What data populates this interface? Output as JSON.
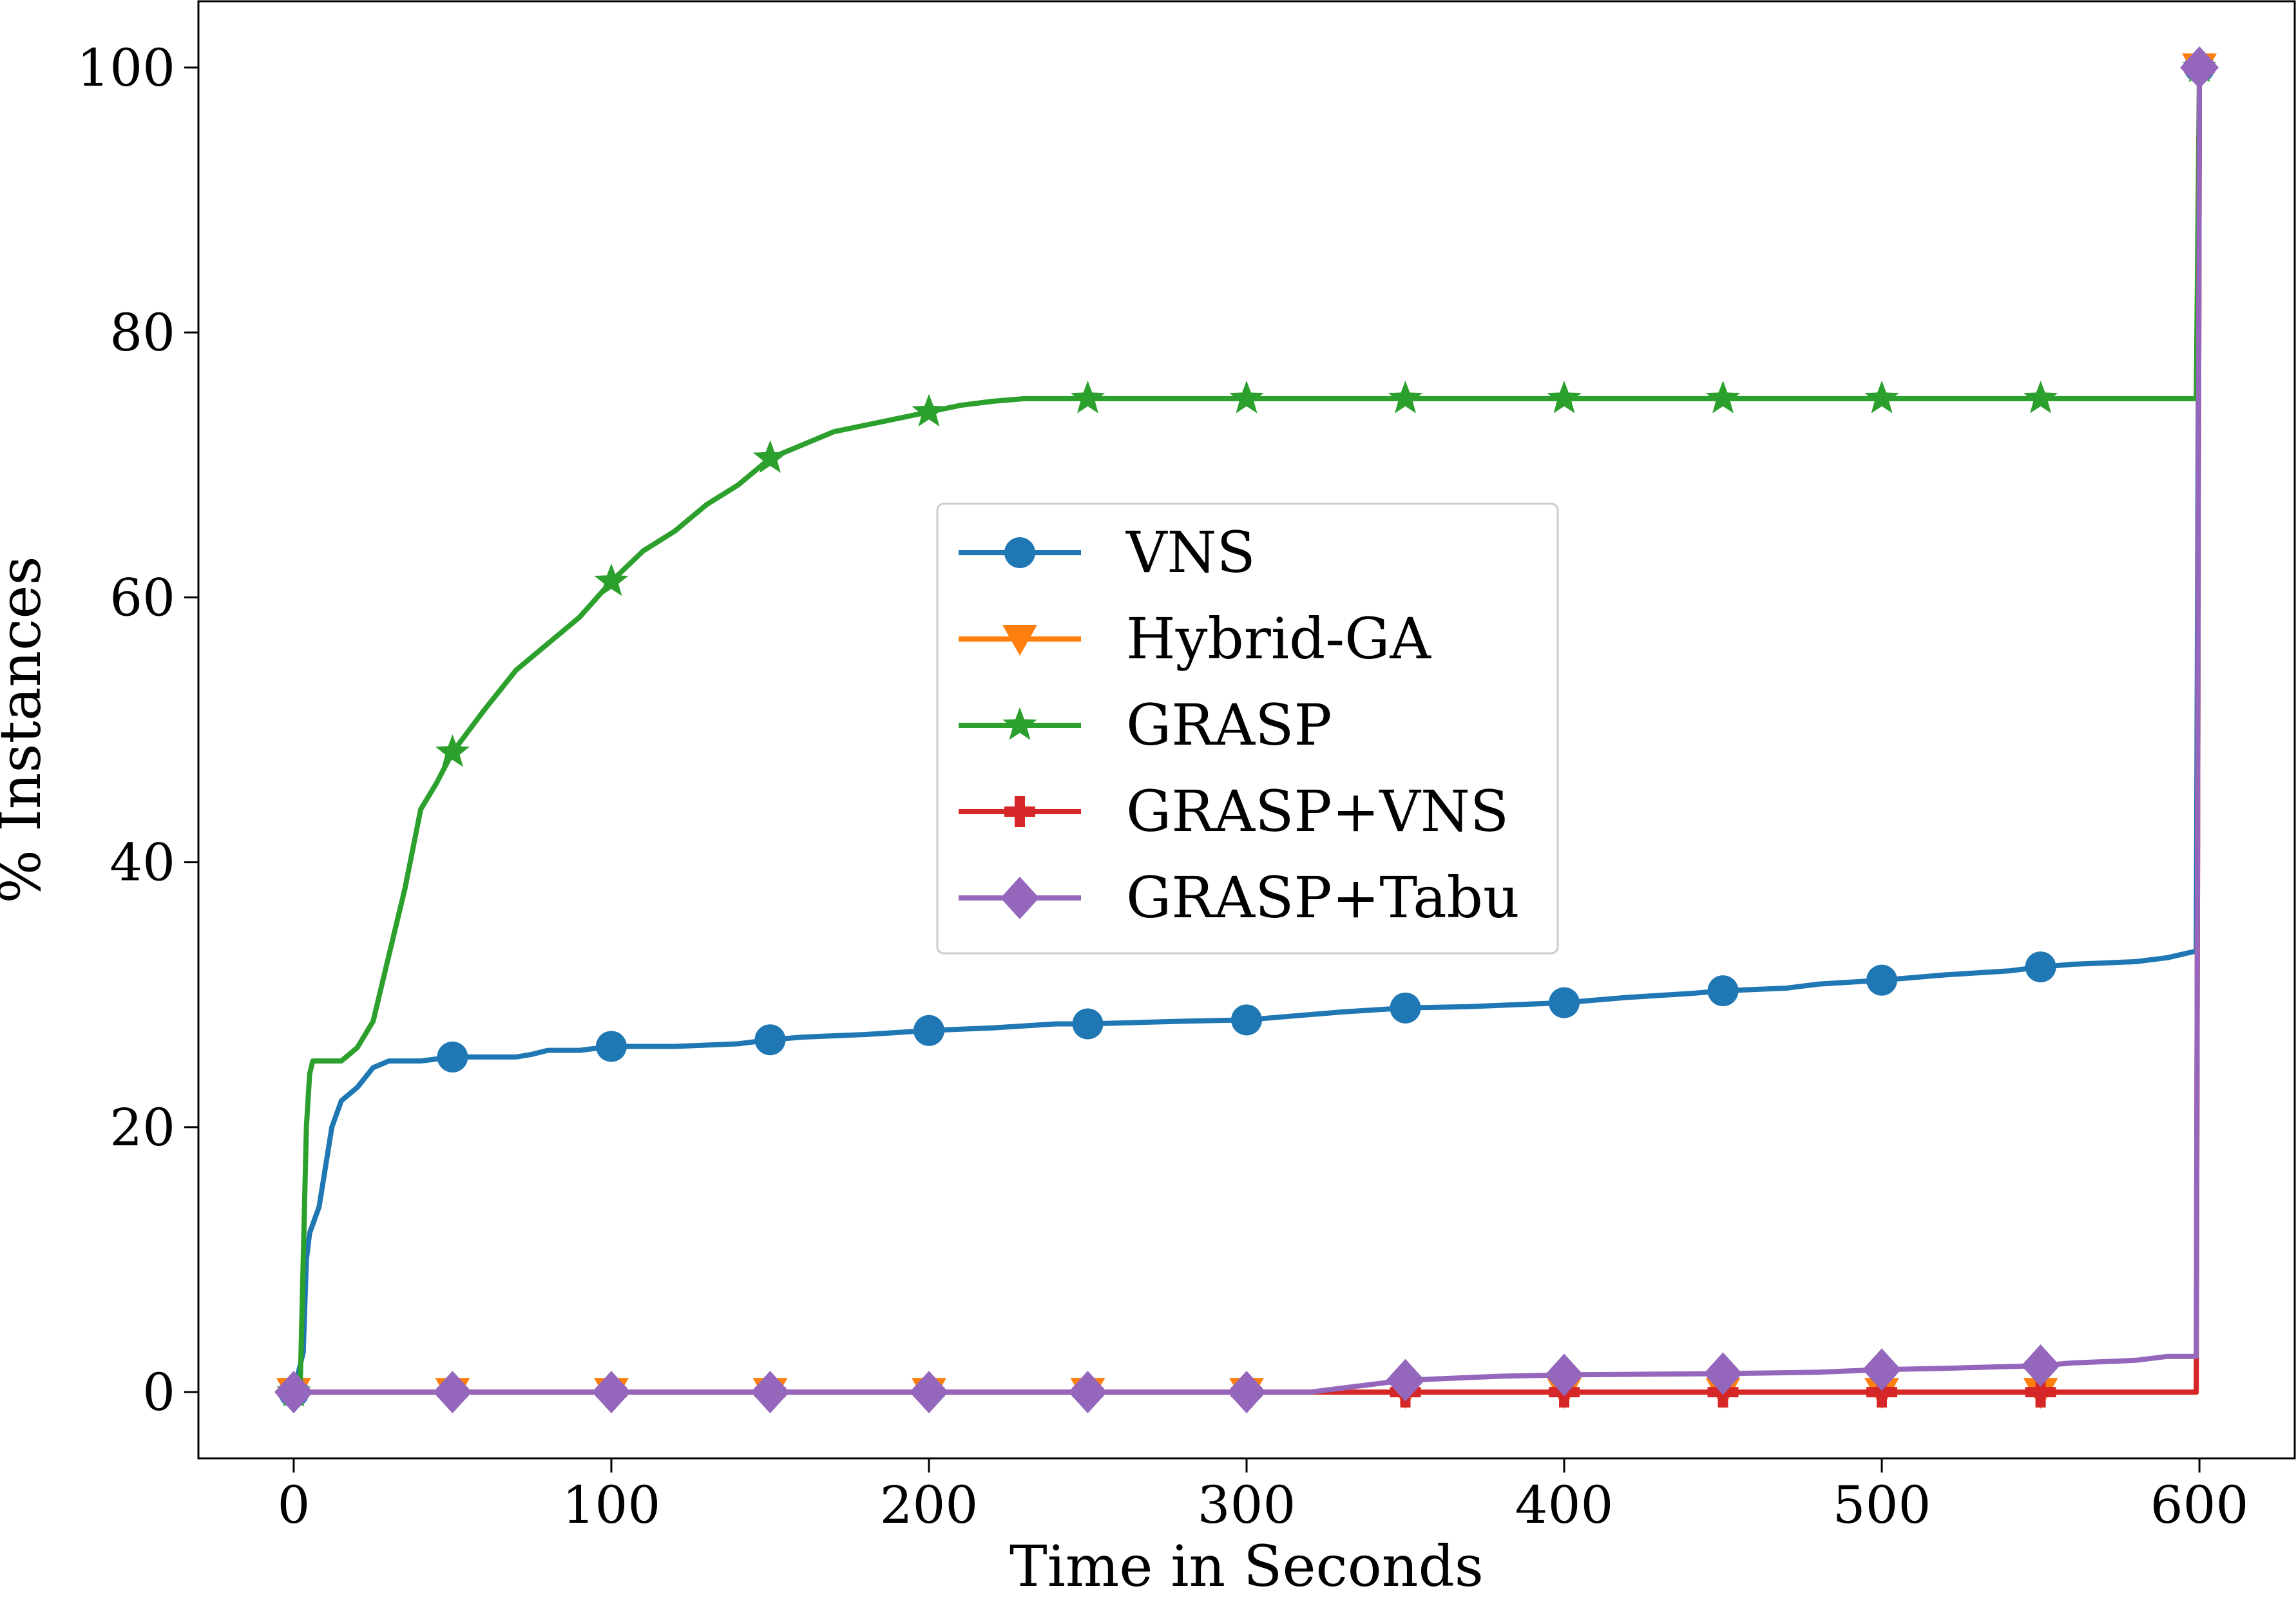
{
  "chart_data": {
    "type": "line",
    "title": "",
    "xlabel": "Time in Seconds",
    "ylabel": "% Instances",
    "xlim": [
      -30,
      630
    ],
    "ylim": [
      -5,
      105
    ],
    "xticks": [
      0,
      100,
      200,
      300,
      400,
      500,
      600
    ],
    "yticks": [
      0,
      20,
      40,
      60,
      80,
      100
    ],
    "grid": false,
    "legend_position": "center",
    "series": [
      {
        "name": "VNS",
        "color": "#1f77b4",
        "marker": "circle",
        "x": [
          0,
          3,
          4,
          5,
          8,
          12,
          15,
          20,
          25,
          30,
          40,
          50,
          60,
          70,
          75,
          80,
          90,
          100,
          120,
          140,
          150,
          160,
          180,
          200,
          220,
          240,
          250,
          280,
          300,
          310,
          320,
          330,
          350,
          370,
          400,
          420,
          440,
          450,
          470,
          480,
          500,
          520,
          540,
          550,
          560,
          580,
          590,
          599,
          600
        ],
        "y": [
          0,
          3,
          10,
          12,
          14,
          20,
          22,
          23,
          24.5,
          25,
          25,
          25.3,
          25.3,
          25.3,
          25.5,
          25.8,
          25.8,
          26.1,
          26.1,
          26.3,
          26.6,
          26.8,
          27,
          27.3,
          27.5,
          27.8,
          27.8,
          28,
          28.1,
          28.3,
          28.5,
          28.7,
          29,
          29.1,
          29.4,
          29.8,
          30.1,
          30.3,
          30.5,
          30.8,
          31.1,
          31.5,
          31.8,
          32.1,
          32.3,
          32.5,
          32.8,
          33.3,
          100
        ]
      },
      {
        "name": "Hybrid-GA",
        "color": "#ff7f0e",
        "marker": "triangle-down",
        "x": [
          0,
          599,
          600
        ],
        "y": [
          0,
          0,
          100
        ]
      },
      {
        "name": "GRASP",
        "color": "#2ca02c",
        "marker": "star",
        "x": [
          0,
          2,
          4,
          5,
          6,
          10,
          15,
          20,
          25,
          30,
          35,
          40,
          45,
          50,
          60,
          70,
          80,
          90,
          100,
          110,
          120,
          130,
          140,
          150,
          160,
          170,
          180,
          190,
          200,
          210,
          220,
          230,
          250,
          300,
          400,
          500,
          550,
          599,
          600
        ],
        "y": [
          0,
          0,
          20,
          24,
          25,
          25,
          25,
          26,
          28,
          33,
          38,
          44,
          46,
          48.3,
          51.5,
          54.5,
          56.5,
          58.5,
          61.2,
          63.5,
          65,
          67,
          68.5,
          70.5,
          71.5,
          72.5,
          73,
          73.5,
          74,
          74.5,
          74.8,
          75,
          75,
          75,
          75,
          75,
          75,
          75,
          100
        ]
      },
      {
        "name": "GRASP+VNS",
        "color": "#d62728",
        "marker": "plus",
        "x": [
          0,
          599,
          600
        ],
        "y": [
          0,
          0,
          100
        ]
      },
      {
        "name": "GRASP+Tabu",
        "color": "#9467bd",
        "marker": "diamond",
        "x": [
          0,
          300,
          320,
          330,
          340,
          350,
          360,
          380,
          400,
          450,
          480,
          500,
          520,
          550,
          560,
          580,
          590,
          599,
          600
        ],
        "y": [
          0,
          0,
          0,
          0.3,
          0.6,
          0.9,
          1.0,
          1.2,
          1.3,
          1.4,
          1.5,
          1.7,
          1.8,
          2.0,
          2.2,
          2.4,
          2.7,
          2.7,
          100
        ]
      }
    ],
    "marker_x": [
      0,
      50,
      100,
      150,
      200,
      250,
      300,
      350,
      400,
      450,
      500,
      550,
      600
    ]
  }
}
